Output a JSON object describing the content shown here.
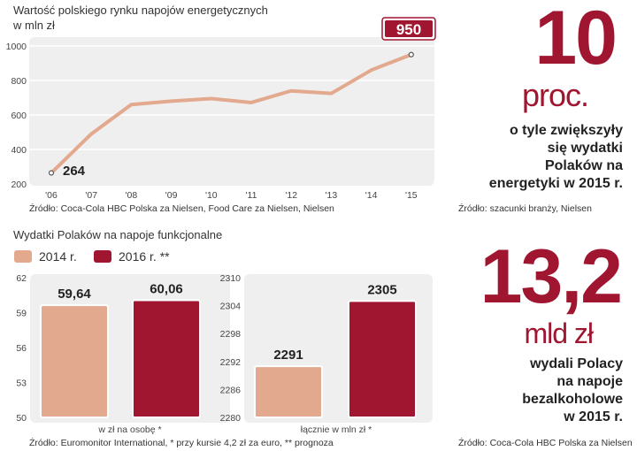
{
  "colors": {
    "line": "#e3a98f",
    "bar2014": "#e3a98f",
    "bar2016": "#a01530",
    "accent": "#a01530",
    "panel": "#efefef"
  },
  "line_chart": {
    "title": "Wartość polskiego rynku napojów energetycznych",
    "unit": "w mln zł",
    "start_label": "264",
    "end_label": "950",
    "source": "Źródło: Coca-Cola HBC Polska za Nielsen, Food Care za Nielsen, Nielsen"
  },
  "bar_chart": {
    "title": "Wydatki Polaków na napoje funkcjonalne",
    "legend_2014": "2014 r.",
    "legend_2016": "2016 r. **",
    "panel1_label": "w zł na osobę  *",
    "panel2_label": "łącznie w mln zł *",
    "source": "Źródło: Euromonitor International, * przy kursie 4,2 zł za euro, ** prognoza"
  },
  "stat1": {
    "number": "10",
    "unit": "proc.",
    "lines": [
      "o tyle zwiększyły",
      "się wydatki",
      "Polaków na",
      "energetyki w 2015 r."
    ],
    "source": "Źródło: szacunki branży, Nielsen"
  },
  "stat2": {
    "number": "13,2",
    "unit": "mld zł",
    "lines": [
      "wydali Polacy",
      "na napoje",
      "bezalkoholowe",
      "w 2015 r."
    ],
    "source": "Źródło: Coca-Cola HBC Polska za Nielsen"
  },
  "chart_data": [
    {
      "type": "line",
      "title": "Wartość polskiego rynku napojów energetycznych",
      "ylabel": "w mln zł",
      "categories": [
        "'06",
        "'07",
        "'08",
        "'09",
        "'10",
        "'11",
        "'12",
        "'13",
        "'14",
        "'15"
      ],
      "values": [
        264,
        490,
        660,
        680,
        695,
        672,
        740,
        725,
        860,
        950
      ],
      "ylim": [
        200,
        1000
      ],
      "yticks": [
        200,
        400,
        600,
        800,
        1000
      ]
    },
    {
      "type": "bar",
      "title": "w zł na osobę",
      "categories": [
        "2014 r.",
        "2016 r. **"
      ],
      "values": [
        59.64,
        60.06
      ],
      "value_labels": [
        "59,64",
        "60,06"
      ],
      "ylim": [
        50,
        62
      ],
      "yticks": [
        50,
        53,
        56,
        59,
        62
      ]
    },
    {
      "type": "bar",
      "title": "łącznie w mln zł",
      "categories": [
        "2014 r.",
        "2016 r. **"
      ],
      "values": [
        2291,
        2305
      ],
      "value_labels": [
        "2291",
        "2305"
      ],
      "ylim": [
        2280,
        2310
      ],
      "yticks": [
        2280,
        2286,
        2292,
        2298,
        2304,
        2310
      ]
    }
  ]
}
